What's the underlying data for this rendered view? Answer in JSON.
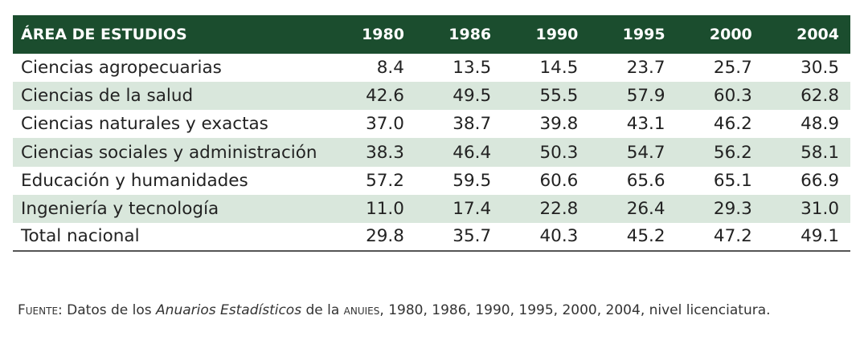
{
  "table": {
    "headers": [
      "ÁREA DE ESTUDIOS",
      "1980",
      "1986",
      "1990",
      "1995",
      "2000",
      "2004"
    ],
    "rows": [
      {
        "area": "Ciencias agropecuarias",
        "values": [
          "8.4",
          "13.5",
          "14.5",
          "23.7",
          "25.7",
          "30.5"
        ]
      },
      {
        "area": "Ciencias de la salud",
        "values": [
          "42.6",
          "49.5",
          "55.5",
          "57.9",
          "60.3",
          "62.8"
        ]
      },
      {
        "area": "Ciencias naturales y exactas",
        "values": [
          "37.0",
          "38.7",
          "39.8",
          "43.1",
          "46.2",
          "48.9"
        ]
      },
      {
        "area": "Ciencias sociales y administración",
        "values": [
          "38.3",
          "46.4",
          "50.3",
          "54.7",
          "56.2",
          "58.1"
        ]
      },
      {
        "area": "Educación y humanidades",
        "values": [
          "57.2",
          "59.5",
          "60.6",
          "65.6",
          "65.1",
          "66.9"
        ]
      },
      {
        "area": "Ingeniería y tecnología",
        "values": [
          "11.0",
          "17.4",
          "22.8",
          "26.4",
          "29.3",
          "31.0"
        ]
      },
      {
        "area": "Total nacional",
        "values": [
          "29.8",
          "35.7",
          "40.3",
          "45.2",
          "47.2",
          "49.1"
        ]
      }
    ]
  },
  "source": {
    "label": "Fuente:",
    "text_before": " Datos de los ",
    "title": "Anuarios Estadísticos",
    "text_middle": " de la ",
    "org": "anuies",
    "text_after": ", 1980, 1986, 1990, 1995, 2000, 2004, nivel licenciatura."
  },
  "colors": {
    "header_bg": "#1b4d2e",
    "shade_row": "#d9e7dc"
  }
}
